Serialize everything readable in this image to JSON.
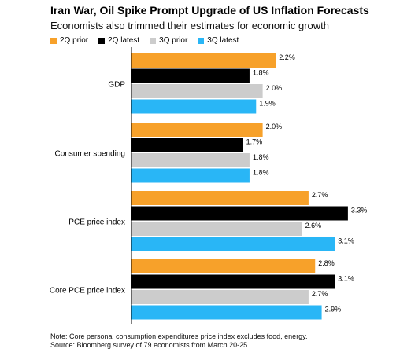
{
  "chart_data": {
    "type": "bar",
    "orientation": "horizontal",
    "title": "Iran War, Oil Spike Prompt Upgrade of US Inflation Forecasts",
    "subtitle": "Economists also trimmed their estimates for economic growth",
    "categories": [
      "GDP",
      "Consumer spending",
      "PCE price index",
      "Core PCE price index"
    ],
    "series": [
      {
        "name": "2Q prior",
        "color": "#f7a12a",
        "values": [
          2.2,
          2.0,
          2.7,
          2.8
        ],
        "labels": [
          "2.2%",
          "2.0%",
          "2.7%",
          "2.8%"
        ]
      },
      {
        "name": "2Q latest",
        "color": "#000000",
        "values": [
          1.8,
          1.7,
          3.3,
          3.1
        ],
        "labels": [
          "1.8%",
          "1.7%",
          "3.3%",
          "3.1%"
        ]
      },
      {
        "name": "3Q prior",
        "color": "#cccccc",
        "values": [
          2.0,
          1.8,
          2.6,
          2.7
        ],
        "labels": [
          "2.0%",
          "1.8%",
          "2.6%",
          "2.7%"
        ]
      },
      {
        "name": "3Q latest",
        "color": "#29b6f6",
        "values": [
          1.9,
          1.8,
          3.1,
          2.9
        ],
        "labels": [
          "1.9%",
          "1.8%",
          "3.1%",
          "2.9%"
        ]
      }
    ],
    "xlim": [
      0,
      3.3
    ],
    "grid": false,
    "legend_position": "top-left"
  },
  "notes": {
    "note": "Note: Core personal consumption expenditures price index excludes food, energy.",
    "source": "Source: Bloomberg survey of 79 economists from March 20-25."
  }
}
